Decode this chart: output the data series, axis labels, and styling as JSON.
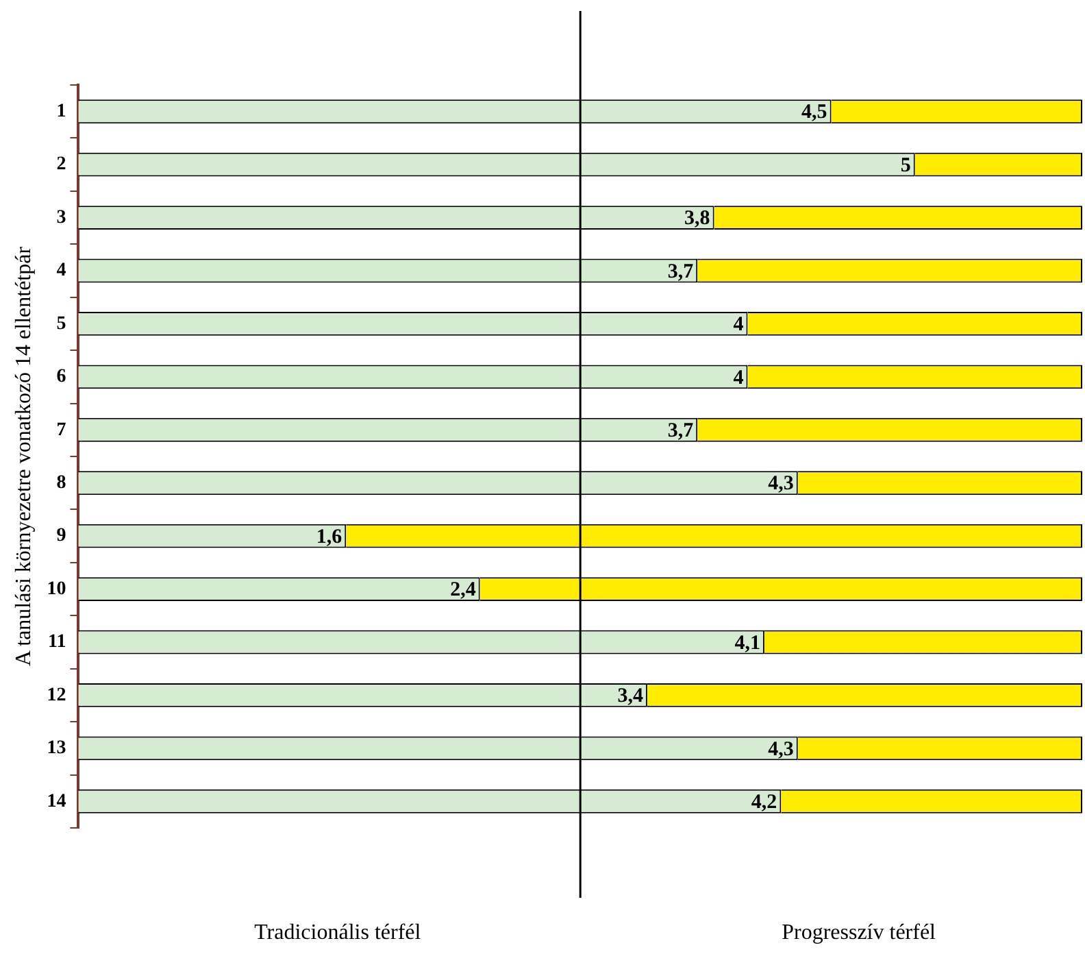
{
  "chart_data": {
    "type": "bar",
    "orientation": "horizontal",
    "stacked": true,
    "ylabel": "A tanulási környezetre vonatkozó 14 ellentétpár",
    "categories": [
      "1",
      "2",
      "3",
      "4",
      "5",
      "6",
      "7",
      "8",
      "9",
      "10",
      "11",
      "12",
      "13",
      "14"
    ],
    "series": [
      {
        "color": "#d6ecd2",
        "values": [
          4.5,
          5,
          3.8,
          3.7,
          4,
          4,
          3.7,
          4.3,
          1.6,
          2.4,
          4.1,
          3.4,
          4.3,
          4.2
        ],
        "value_labels": [
          "4,5",
          "5",
          "3,8",
          "3,7",
          "4",
          "4",
          "3,7",
          "4,3",
          "1,6",
          "2,4",
          "4,1",
          "3,4",
          "4,3",
          "4,2"
        ]
      },
      {
        "color": "#ffec00",
        "values": [
          1.5,
          1,
          2.2,
          2.3,
          2,
          2,
          2.3,
          1.7,
          4.4,
          3.6,
          1.9,
          2.6,
          1.7,
          1.8
        ]
      }
    ],
    "xlim": [
      0,
      6
    ],
    "legend": false,
    "tick_labels": "y",
    "ref_lines": [
      {
        "axis": "x",
        "value": 3,
        "color": "#000000"
      }
    ],
    "annotations": [
      "Tradicionális térfél",
      "Progresszív térfél"
    ]
  }
}
